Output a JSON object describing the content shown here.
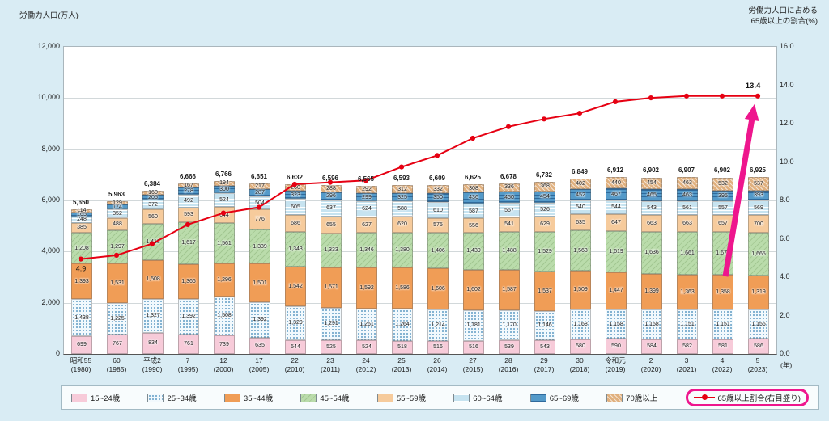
{
  "page": {
    "background": "#d9ecf4"
  },
  "chart_data": {
    "type": "bar",
    "subtype": "stacked-bar-with-line",
    "left_axis": {
      "title": "労働力人口(万人)",
      "min": 0,
      "max": 12000,
      "step": 2000,
      "ticks": [
        "12,000",
        "10,000",
        "8,000",
        "6,000",
        "4,000",
        "2,000",
        "0"
      ]
    },
    "right_axis": {
      "title_line1": "労働力人口に占める",
      "title_line2": "65歳以上の割合(%)",
      "min": 0,
      "max": 16,
      "step": 2,
      "ticks": [
        "16.0",
        "14.0",
        "12.0",
        "10.0",
        "8.0",
        "6.0",
        "4.0",
        "2.0",
        "0.0"
      ]
    },
    "x_unit": "(年)",
    "grid": true,
    "legend_position": "bottom",
    "categories": [
      [
        "昭和55",
        "(1980)"
      ],
      [
        "60",
        "(1985)"
      ],
      [
        "平成2",
        "(1990)"
      ],
      [
        "7",
        "(1995)"
      ],
      [
        "12",
        "(2000)"
      ],
      [
        "17",
        "(2005)"
      ],
      [
        "22",
        "(2010)"
      ],
      [
        "23",
        "(2011)"
      ],
      [
        "24",
        "(2012)"
      ],
      [
        "25",
        "(2013)"
      ],
      [
        "26",
        "(2014)"
      ],
      [
        "27",
        "(2015)"
      ],
      [
        "28",
        "(2016)"
      ],
      [
        "29",
        "(2017)"
      ],
      [
        "30",
        "(2018)"
      ],
      [
        "令和元",
        "(2019)"
      ],
      [
        "2",
        "(2020)"
      ],
      [
        "3",
        "(2021)"
      ],
      [
        "4",
        "(2022)"
      ],
      [
        "5",
        "(2023)"
      ]
    ],
    "totals": [
      5650,
      5963,
      6384,
      6666,
      6766,
      6651,
      6632,
      6596,
      6565,
      6593,
      6609,
      6625,
      6678,
      6732,
      6849,
      6912,
      6902,
      6907,
      6902,
      6925
    ],
    "series": [
      {
        "key": "15-24",
        "label": "15~24歳",
        "color": "#f7cbd9",
        "pattern": "solid",
        "values": [
          699,
          767,
          834,
          761,
          739,
          635,
          544,
          525,
          524,
          518,
          516,
          516,
          539,
          543,
          580,
          590,
          584,
          582,
          581,
          586
        ]
      },
      {
        "key": "25-34",
        "label": "25~34歳",
        "color": "#f2f9fd",
        "pattern": "dots",
        "values": [
          1438,
          1225,
          1327,
          1392,
          1508,
          1392,
          1329,
          1291,
          1261,
          1264,
          1214,
          1181,
          1170,
          1146,
          1168,
          1158,
          1158,
          1151,
          1151,
          1156
        ]
      },
      {
        "key": "35-44",
        "label": "35~44歳",
        "color": "#f09d56",
        "pattern": "solid",
        "values": [
          1393,
          1531,
          1508,
          1366,
          1296,
          1501,
          1542,
          1571,
          1592,
          1586,
          1606,
          1602,
          1587,
          1537,
          1509,
          1447,
          1399,
          1363,
          1358,
          1319
        ]
      },
      {
        "key": "45-54",
        "label": "45~54歳",
        "color": "#badcab",
        "pattern": "diag-green",
        "values": [
          1208,
          1297,
          1418,
          1617,
          1561,
          1339,
          1343,
          1333,
          1346,
          1380,
          1406,
          1439,
          1488,
          1529,
          1563,
          1619,
          1636,
          1661,
          1671,
          1665
        ]
      },
      {
        "key": "55-59",
        "label": "55~59歳",
        "color": "#f6cb9c",
        "pattern": "solid",
        "values": [
          385,
          488,
          560,
          593,
          644,
          776,
          686,
          655,
          627,
          620,
          575,
          556,
          541,
          629,
          635,
          647,
          663,
          663,
          657,
          700
        ]
      },
      {
        "key": "60-64",
        "label": "60~64歳",
        "color": "#c6e3f0",
        "pattern": "hstripe-light",
        "values": [
          248,
          352,
          372,
          492,
          524,
          504,
          605,
          637,
          624,
          588,
          610,
          587,
          567,
          526,
          540,
          544,
          543,
          561,
          557,
          569
        ]
      },
      {
        "key": "65-69",
        "label": "65~69歳",
        "color": "#549ac9",
        "pattern": "hstripe-dark",
        "values": [
          165,
          174,
          205,
          278,
          300,
          287,
          323,
          296,
          299,
          325,
          350,
          436,
          450,
          454,
          452,
          467,
          465,
          463,
          395,
          393
        ]
      },
      {
        "key": "70plus",
        "label": "70歳以上",
        "color": "#e0b07e",
        "pattern": "diag",
        "values": [
          114,
          129,
          160,
          167,
          194,
          217,
          260,
          288,
          292,
          312,
          332,
          308,
          336,
          368,
          402,
          440,
          454,
          463,
          532,
          537
        ]
      }
    ],
    "line": {
      "label": "65歳以上割合(右目盛り)",
      "color": "#e60012",
      "values": [
        4.9,
        5.1,
        5.7,
        6.7,
        7.3,
        7.6,
        8.8,
        8.9,
        9.0,
        9.7,
        10.3,
        11.2,
        11.8,
        12.2,
        12.5,
        13.1,
        13.3,
        13.4,
        13.4,
        13.4
      ],
      "first_point_label": "4.9",
      "last_point_label": "13.4"
    },
    "highlight_color": "#ee168d"
  }
}
